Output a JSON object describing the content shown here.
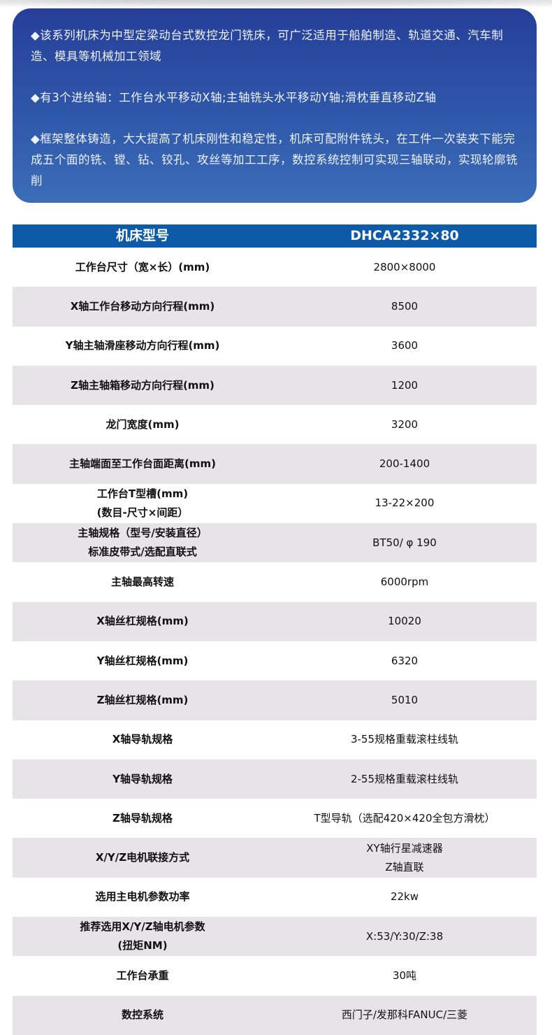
{
  "intro": {
    "paragraphs": [
      "◆该系列机床为中型定梁动台式数控龙门铣床，可广泛适用于船舶制造、轨道交通、汽车制造、模具等机械加工领域",
      "◆有3个进给轴：工作台水平移动X轴;主轴铣头水平移动Y轴;滑枕垂直移动Z轴",
      "◆框架整体铸造，大大提高了机床刚性和稳定性，机床可配附件铣头，在工件一次装夹下能完成五个面的铣、镗、钻、铰孔、攻丝等加工工序，数控系统控制可实现三轴联动，实现轮廓铣削"
    ]
  },
  "table": {
    "header": {
      "label": "机床型号",
      "value": "DHCA2332×80"
    },
    "rows": [
      {
        "label": "工作台尺寸（宽×长）(mm)",
        "value": "2800×8000"
      },
      {
        "label": "X轴工作台移动方向行程(mm)",
        "value": "8500"
      },
      {
        "label": "Y轴主轴滑座移动方向行程(mm)",
        "value": "3600"
      },
      {
        "label": "Z轴主轴箱移动方向行程(mm)",
        "value": "1200"
      },
      {
        "label": "龙门宽度(mm)",
        "value": "3200"
      },
      {
        "label": "主轴端面至工作台面距离(mm)",
        "value": "200-1400"
      },
      {
        "label": "工作台T型槽(mm)\n(数目-尺寸×间距）",
        "value": "13-22×200"
      },
      {
        "label": "主轴规格（型号/安装直径）\n标准皮带式/选配直联式",
        "value": "BT50/ φ 190"
      },
      {
        "label": "主轴最高转速",
        "value": "6000rpm"
      },
      {
        "label": "X轴丝杠规格(mm)",
        "value": "10020"
      },
      {
        "label": "Y轴丝杠规格(mm)",
        "value": "6320"
      },
      {
        "label": "Z轴丝杠规格(mm)",
        "value": "5010"
      },
      {
        "label": "X轴导轨规格",
        "value": "3-55规格重载滚柱线轨"
      },
      {
        "label": "Y轴导轨规格",
        "value": "2-55规格重载滚柱线轨"
      },
      {
        "label": "Z轴导轨规格",
        "value": "T型导轨（选配420×420全包方滑枕）"
      },
      {
        "label": "X/Y/Z电机联接方式",
        "value": "XY轴行星减速器\nZ轴直联"
      },
      {
        "label": "选用主电机参数功率",
        "value": "22kw"
      },
      {
        "label": "推荐选用X/Y/Z轴电机参数\n(扭矩NM)",
        "value": "X:53/Y:30/Z:38"
      },
      {
        "label": "工作台承重",
        "value": "30吨"
      },
      {
        "label": "数控系统",
        "value": "西门子/发那科FANUC/三菱"
      }
    ]
  },
  "colors": {
    "intro_top": "#263f98",
    "intro_bottom": "#3b6db8",
    "header": "#0d5aa8",
    "stripe": "#e6e4e6"
  }
}
